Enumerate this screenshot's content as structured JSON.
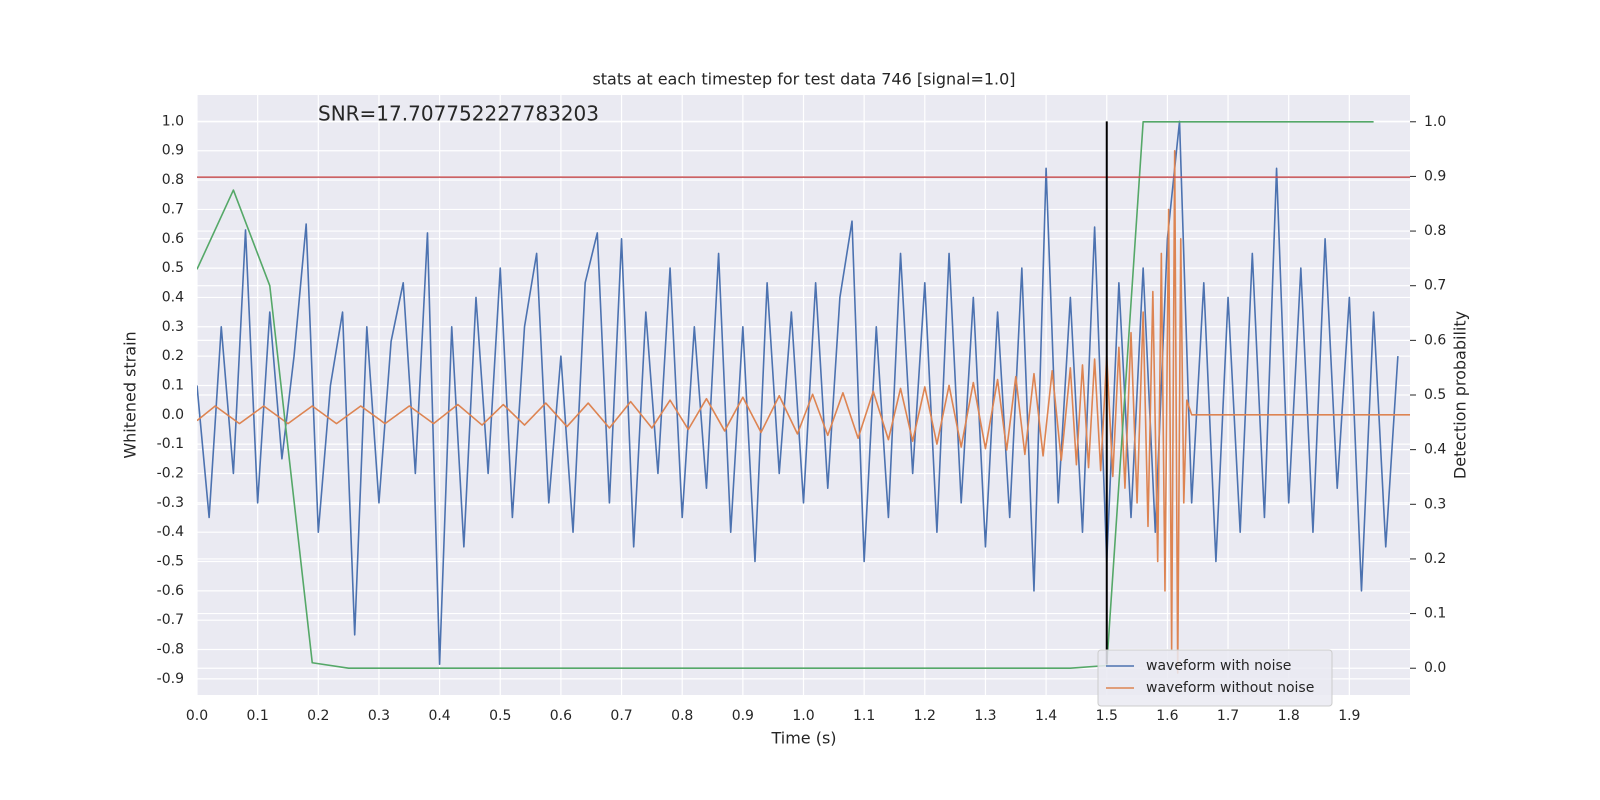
{
  "chart_data": {
    "type": "line",
    "title": "stats at each timestep for test data 746 [signal=1.0]",
    "annotation": "SNR=17.707752227783203",
    "xlabel": "Time (s)",
    "ylabel": "Whitened strain",
    "y2label": "Detection probability",
    "xlim": [
      0,
      2.0
    ],
    "ylim": [
      -0.955,
      1.09
    ],
    "y2lim": [
      -0.049,
      1.049
    ],
    "xticks": [
      {
        "value": 0,
        "label": "0.0"
      },
      0.1,
      0.2,
      0.3,
      0.4,
      0.5,
      0.6,
      0.7,
      0.8,
      0.9,
      {
        "value": 1,
        "label": "1.0"
      },
      1.1,
      1.2,
      1.3,
      1.4,
      1.5,
      1.6,
      1.7,
      1.8,
      1.9
    ],
    "yticks": [
      -0.9,
      -0.8,
      -0.7,
      -0.6,
      -0.5,
      -0.4,
      -0.3,
      -0.2,
      -0.1,
      {
        "value": 0,
        "label": "0.0"
      },
      0.1,
      0.2,
      0.3,
      0.4,
      0.5,
      0.6,
      0.7,
      0.8,
      0.9,
      {
        "value": 1,
        "label": "1.0"
      }
    ],
    "y2ticks": [
      {
        "value": 0,
        "label": "0.0"
      },
      0.1,
      0.2,
      0.3,
      0.4,
      0.5,
      0.6,
      0.7,
      0.8,
      0.9,
      {
        "value": 1,
        "label": "1.0"
      }
    ],
    "grid": true,
    "legend": "lower right",
    "series": [
      {
        "name": "waveform with noise",
        "color": "#4c72b0",
        "x": [
          0,
          0.02,
          0.04,
          0.06,
          0.08,
          0.1,
          0.12,
          0.14,
          0.16,
          0.18,
          0.2,
          0.22,
          0.24,
          0.26,
          0.28,
          0.3,
          0.32,
          0.34,
          0.36,
          0.38,
          0.4,
          0.42,
          0.44,
          0.46,
          0.48,
          0.5,
          0.52,
          0.54,
          0.56,
          0.58,
          0.6,
          0.62,
          0.64,
          0.66,
          0.68,
          0.7,
          0.72,
          0.74,
          0.76,
          0.78,
          0.8,
          0.82,
          0.84,
          0.86,
          0.88,
          0.9,
          0.92,
          0.94,
          0.96,
          0.98,
          1,
          1.02,
          1.04,
          1.06,
          1.08,
          1.1,
          1.12,
          1.14,
          1.16,
          1.18,
          1.2,
          1.22,
          1.24,
          1.26,
          1.28,
          1.3,
          1.32,
          1.34,
          1.36,
          1.38,
          1.4,
          1.42,
          1.44,
          1.46,
          1.48,
          1.5,
          1.52,
          1.54,
          1.56,
          1.58,
          1.6,
          1.62,
          1.64,
          1.66,
          1.68,
          1.7,
          1.72,
          1.74,
          1.76,
          1.78,
          1.8,
          1.82,
          1.84,
          1.86,
          1.88,
          1.9,
          1.92,
          1.94,
          1.96,
          1.98
        ],
        "values": [
          0.1,
          -0.35,
          0.3,
          -0.2,
          0.63,
          -0.3,
          0.35,
          -0.15,
          0.2,
          0.65,
          -0.4,
          0.1,
          0.35,
          -0.75,
          0.3,
          -0.3,
          0.25,
          0.45,
          -0.2,
          0.62,
          -0.85,
          0.3,
          -0.45,
          0.4,
          -0.2,
          0.5,
          -0.35,
          0.3,
          0.55,
          -0.3,
          0.2,
          -0.4,
          0.45,
          0.62,
          -0.3,
          0.6,
          -0.45,
          0.35,
          -0.2,
          0.5,
          -0.35,
          0.3,
          -0.25,
          0.55,
          -0.4,
          0.3,
          -0.5,
          0.45,
          -0.2,
          0.35,
          -0.3,
          0.45,
          -0.25,
          0.4,
          0.66,
          -0.5,
          0.3,
          -0.35,
          0.55,
          -0.2,
          0.45,
          -0.4,
          0.55,
          -0.3,
          0.4,
          -0.45,
          0.35,
          -0.35,
          0.5,
          -0.6,
          0.84,
          -0.3,
          0.4,
          -0.4,
          0.64,
          -0.5,
          0.45,
          -0.35,
          0.5,
          -0.4,
          0.6,
          1.0,
          -0.3,
          0.45,
          -0.5,
          0.4,
          -0.4,
          0.55,
          -0.35,
          0.84,
          -0.3,
          0.5,
          -0.4,
          0.6,
          -0.25,
          0.4,
          -0.6,
          0.35,
          -0.45,
          0.2
        ]
      },
      {
        "name": "waveform without noise",
        "color": "#dd8452",
        "x": [
          0,
          0.03,
          0.07,
          0.11,
          0.15,
          0.19,
          0.23,
          0.27,
          0.31,
          0.35,
          0.39,
          0.43,
          0.47,
          0.505,
          0.54,
          0.575,
          0.61,
          0.645,
          0.68,
          0.715,
          0.75,
          0.78,
          0.81,
          0.84,
          0.87,
          0.9,
          0.93,
          0.96,
          0.99,
          1.015,
          1.04,
          1.065,
          1.09,
          1.115,
          1.14,
          1.16,
          1.18,
          1.2,
          1.22,
          1.24,
          1.26,
          1.28,
          1.3,
          1.32,
          1.335,
          1.35,
          1.365,
          1.38,
          1.395,
          1.41,
          1.425,
          1.44,
          1.45,
          1.46,
          1.47,
          1.48,
          1.49,
          1.5,
          1.51,
          1.52,
          1.53,
          1.54,
          1.55,
          1.56,
          1.568,
          1.576,
          1.584,
          1.59,
          1.596,
          1.602,
          1.607,
          1.612,
          1.617,
          1.622,
          1.627,
          1.632,
          1.64,
          2.0
        ],
        "values": [
          -0.02,
          0.03,
          -0.03,
          0.03,
          -0.03,
          0.03,
          -0.03,
          0.03,
          -0.03,
          0.03,
          -0.03,
          0.035,
          -0.035,
          0.035,
          -0.035,
          0.04,
          -0.04,
          0.04,
          -0.045,
          0.045,
          -0.045,
          0.05,
          -0.05,
          0.055,
          -0.055,
          0.06,
          -0.06,
          0.065,
          -0.065,
          0.07,
          -0.07,
          0.075,
          -0.08,
          0.08,
          -0.085,
          0.09,
          -0.09,
          0.095,
          -0.1,
          0.1,
          -0.11,
          0.11,
          -0.115,
          0.12,
          -0.12,
          0.13,
          -0.135,
          0.14,
          -0.14,
          0.15,
          -0.155,
          0.16,
          -0.17,
          0.17,
          -0.18,
          0.19,
          -0.19,
          0.2,
          -0.21,
          0.23,
          -0.25,
          0.28,
          -0.3,
          0.35,
          -0.38,
          0.42,
          -0.5,
          0.55,
          -0.6,
          0.7,
          -0.8,
          0.9,
          -0.88,
          0.6,
          -0.3,
          0.05,
          0,
          0
        ]
      },
      {
        "color": "#55a868",
        "axis": "y2",
        "x": [
          0,
          0.06,
          0.12,
          0.19,
          0.25,
          1.44,
          1.5,
          1.56,
          1.94
        ],
        "values": [
          0.73,
          0.875,
          0.7,
          0.01,
          0,
          0,
          0.005,
          1.0,
          1.0
        ]
      }
    ],
    "hlines": [
      {
        "y": 0.81,
        "color": "#c44e52"
      }
    ],
    "vlines": [
      {
        "x": 1.5,
        "ymin": -0.85,
        "ymax": 1.0,
        "color": "#000000"
      }
    ]
  }
}
